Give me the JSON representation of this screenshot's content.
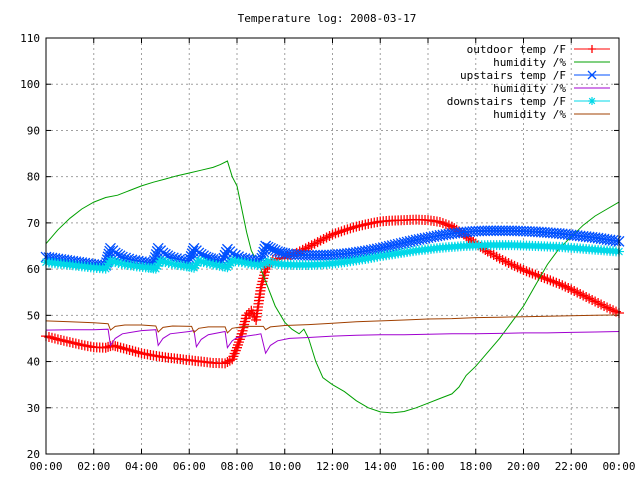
{
  "chart_data": {
    "type": "line",
    "title": "Temperature log: 2008-03-17",
    "xlabel": "",
    "ylabel": "",
    "xlim": [
      0,
      24
    ],
    "ylim": [
      20,
      110
    ],
    "x_ticks": [
      "00:00",
      "02:00",
      "04:00",
      "06:00",
      "08:00",
      "10:00",
      "12:00",
      "14:00",
      "16:00",
      "18:00",
      "20:00",
      "22:00",
      "00:00"
    ],
    "y_ticks": [
      "20",
      "30",
      "40",
      "50",
      "60",
      "70",
      "80",
      "90",
      "100",
      "110"
    ],
    "grid": true,
    "legend_position": "top-right",
    "x_units": "hours",
    "series": [
      {
        "name": "outdoor temp /F",
        "color": "#ff0000",
        "marker": "plus",
        "points": [
          [
            0,
            45.5
          ],
          [
            0.5,
            44.8
          ],
          [
            1,
            44.2
          ],
          [
            1.5,
            43.6
          ],
          [
            2,
            43.1
          ],
          [
            2.5,
            43.0
          ],
          [
            2.8,
            43.5
          ],
          [
            3,
            43.2
          ],
          [
            3.5,
            42.5
          ],
          [
            4,
            41.8
          ],
          [
            4.5,
            41.3
          ],
          [
            5,
            40.9
          ],
          [
            5.5,
            40.6
          ],
          [
            6,
            40.3
          ],
          [
            6.5,
            40.0
          ],
          [
            7,
            39.7
          ],
          [
            7.5,
            39.6
          ],
          [
            7.8,
            40.5
          ],
          [
            8,
            43
          ],
          [
            8.2,
            46
          ],
          [
            8.4,
            50
          ],
          [
            8.6,
            51
          ],
          [
            8.8,
            49
          ],
          [
            9,
            56
          ],
          [
            9.2,
            60
          ],
          [
            9.5,
            62
          ],
          [
            10,
            62.5
          ],
          [
            10.5,
            63.5
          ],
          [
            11,
            64.8
          ],
          [
            11.5,
            66.2
          ],
          [
            12,
            67.5
          ],
          [
            12.5,
            68.4
          ],
          [
            13,
            69.2
          ],
          [
            13.5,
            69.8
          ],
          [
            14,
            70.3
          ],
          [
            14.5,
            70.5
          ],
          [
            15,
            70.6
          ],
          [
            15.5,
            70.7
          ],
          [
            16,
            70.6
          ],
          [
            16.5,
            70.2
          ],
          [
            17,
            69.2
          ],
          [
            17.5,
            67.5
          ],
          [
            18,
            65.5
          ],
          [
            18.5,
            63.8
          ],
          [
            19,
            62.3
          ],
          [
            19.5,
            61.0
          ],
          [
            20,
            59.8
          ],
          [
            20.5,
            58.8
          ],
          [
            21,
            57.8
          ],
          [
            21.5,
            56.8
          ],
          [
            22,
            55.6
          ],
          [
            22.5,
            54.3
          ],
          [
            23,
            53.0
          ],
          [
            23.5,
            51.7
          ],
          [
            24,
            50.5
          ]
        ]
      },
      {
        "name": "humidity /%",
        "color": "#00a000",
        "marker": "none",
        "points": [
          [
            0,
            65.5
          ],
          [
            0.5,
            68.5
          ],
          [
            1,
            71
          ],
          [
            1.5,
            73
          ],
          [
            2,
            74.5
          ],
          [
            2.5,
            75.5
          ],
          [
            3,
            76
          ],
          [
            3.5,
            77
          ],
          [
            4,
            78
          ],
          [
            4.5,
            78.8
          ],
          [
            5,
            79.5
          ],
          [
            5.5,
            80.2
          ],
          [
            6,
            80.8
          ],
          [
            6.5,
            81.4
          ],
          [
            7,
            82
          ],
          [
            7.3,
            82.6
          ],
          [
            7.6,
            83.4
          ],
          [
            7.8,
            80
          ],
          [
            8,
            78
          ],
          [
            8.2,
            73
          ],
          [
            8.4,
            68
          ],
          [
            8.6,
            64
          ],
          [
            8.8,
            62
          ],
          [
            9,
            60
          ],
          [
            9.3,
            56
          ],
          [
            9.6,
            52
          ],
          [
            10,
            48.5
          ],
          [
            10.3,
            47
          ],
          [
            10.6,
            46
          ],
          [
            10.8,
            47
          ],
          [
            11,
            45
          ],
          [
            11.3,
            40
          ],
          [
            11.6,
            36.5
          ],
          [
            12,
            35
          ],
          [
            12.5,
            33.5
          ],
          [
            13,
            31.5
          ],
          [
            13.5,
            30
          ],
          [
            14,
            29.1
          ],
          [
            14.5,
            28.9
          ],
          [
            15,
            29.2
          ],
          [
            15.5,
            30
          ],
          [
            16,
            31
          ],
          [
            16.5,
            32
          ],
          [
            17,
            33
          ],
          [
            17.3,
            34.5
          ],
          [
            17.6,
            37
          ],
          [
            18,
            39
          ],
          [
            18.5,
            42
          ],
          [
            19,
            45
          ],
          [
            19.5,
            48.5
          ],
          [
            20,
            52
          ],
          [
            20.5,
            56.5
          ],
          [
            21,
            61
          ],
          [
            21.5,
            64.5
          ],
          [
            22,
            67
          ],
          [
            22.5,
            69.5
          ],
          [
            23,
            71.5
          ],
          [
            23.5,
            73
          ],
          [
            24,
            74.5
          ]
        ]
      },
      {
        "name": "upstairs temp /F",
        "color": "#0050ff",
        "marker": "x",
        "points": [
          [
            0,
            62.6
          ],
          [
            0.5,
            62.2
          ],
          [
            1,
            61.8
          ],
          [
            1.5,
            61.4
          ],
          [
            2,
            61.0
          ],
          [
            2.5,
            60.8
          ],
          [
            2.7,
            64.5
          ],
          [
            2.9,
            63.5
          ],
          [
            3.2,
            62.6
          ],
          [
            3.6,
            62.0
          ],
          [
            4,
            61.6
          ],
          [
            4.5,
            61.2
          ],
          [
            4.7,
            64.5
          ],
          [
            4.9,
            63.5
          ],
          [
            5.2,
            62.6
          ],
          [
            5.6,
            62.1
          ],
          [
            6,
            61.6
          ],
          [
            6.2,
            64.5
          ],
          [
            6.4,
            63.5
          ],
          [
            6.7,
            62.6
          ],
          [
            7,
            62.1
          ],
          [
            7.4,
            61.7
          ],
          [
            7.6,
            64.3
          ],
          [
            7.8,
            63.3
          ],
          [
            8.2,
            62.4
          ],
          [
            8.6,
            62
          ],
          [
            9,
            61.7
          ],
          [
            9.2,
            65
          ],
          [
            9.4,
            64.5
          ],
          [
            9.7,
            63.8
          ],
          [
            10,
            63.4
          ],
          [
            10.5,
            63.1
          ],
          [
            11,
            63.0
          ],
          [
            11.5,
            63.0
          ],
          [
            12,
            63.1
          ],
          [
            12.5,
            63.3
          ],
          [
            13,
            63.6
          ],
          [
            13.5,
            64.0
          ],
          [
            14,
            64.5
          ],
          [
            14.5,
            65.1
          ],
          [
            15,
            65.7
          ],
          [
            15.5,
            66.3
          ],
          [
            16,
            66.8
          ],
          [
            16.5,
            67.3
          ],
          [
            17,
            67.7
          ],
          [
            17.5,
            68.0
          ],
          [
            18,
            68.2
          ],
          [
            18.5,
            68.3
          ],
          [
            19,
            68.3
          ],
          [
            19.5,
            68.3
          ],
          [
            20,
            68.2
          ],
          [
            20.5,
            68.1
          ],
          [
            21,
            67.9
          ],
          [
            21.5,
            67.7
          ],
          [
            22,
            67.4
          ],
          [
            22.5,
            67.1
          ],
          [
            23,
            66.8
          ],
          [
            23.5,
            66.4
          ],
          [
            24,
            66.0
          ]
        ]
      },
      {
        "name": "humidity /%",
        "color": "#a000d0",
        "marker": "none",
        "points": [
          [
            0,
            46.8
          ],
          [
            1,
            46.9
          ],
          [
            2,
            46.9
          ],
          [
            2.6,
            47
          ],
          [
            2.7,
            43.5
          ],
          [
            2.9,
            45
          ],
          [
            3.2,
            46
          ],
          [
            4,
            46.7
          ],
          [
            4.6,
            46.9
          ],
          [
            4.7,
            43.5
          ],
          [
            4.9,
            45
          ],
          [
            5.2,
            46
          ],
          [
            6,
            46.5
          ],
          [
            6.2,
            46.7
          ],
          [
            6.3,
            43.2
          ],
          [
            6.5,
            44.8
          ],
          [
            6.8,
            45.8
          ],
          [
            7.5,
            46.5
          ],
          [
            7.6,
            43
          ],
          [
            7.8,
            44.5
          ],
          [
            8,
            45.2
          ],
          [
            8.8,
            45.8
          ],
          [
            9,
            46
          ],
          [
            9.2,
            41.8
          ],
          [
            9.4,
            43.5
          ],
          [
            9.7,
            44.5
          ],
          [
            10.2,
            45
          ],
          [
            11,
            45.2
          ],
          [
            12,
            45.5
          ],
          [
            13,
            45.7
          ],
          [
            14,
            45.8
          ],
          [
            15,
            45.8
          ],
          [
            16,
            45.9
          ],
          [
            17,
            46
          ],
          [
            18,
            46
          ],
          [
            19,
            46.1
          ],
          [
            20,
            46.2
          ],
          [
            21,
            46.2
          ],
          [
            22,
            46.3
          ],
          [
            23,
            46.4
          ],
          [
            24,
            46.5
          ]
        ]
      },
      {
        "name": "downstairs temp /F",
        "color": "#00d8e8",
        "marker": "star",
        "points": [
          [
            0,
            61.5
          ],
          [
            0.5,
            61.2
          ],
          [
            1,
            60.9
          ],
          [
            1.5,
            60.6
          ],
          [
            2,
            60.3
          ],
          [
            2.5,
            60.1
          ],
          [
            2.7,
            61.8
          ],
          [
            2.9,
            61.5
          ],
          [
            3.3,
            61.0
          ],
          [
            3.8,
            60.6
          ],
          [
            4.3,
            60.3
          ],
          [
            4.6,
            60.1
          ],
          [
            4.8,
            61.8
          ],
          [
            5,
            61.5
          ],
          [
            5.4,
            61
          ],
          [
            5.9,
            60.6
          ],
          [
            6.2,
            60.3
          ],
          [
            6.4,
            61.8
          ],
          [
            6.6,
            61.5
          ],
          [
            7,
            61
          ],
          [
            7.4,
            60.6
          ],
          [
            7.6,
            60.4
          ],
          [
            7.8,
            61.8
          ],
          [
            8.2,
            61.5
          ],
          [
            8.6,
            61.1
          ],
          [
            9,
            60.8
          ],
          [
            9.3,
            61.6
          ],
          [
            9.6,
            61.2
          ],
          [
            10,
            61.0
          ],
          [
            10.5,
            60.9
          ],
          [
            11,
            60.9
          ],
          [
            11.5,
            61.0
          ],
          [
            12,
            61.2
          ],
          [
            12.5,
            61.5
          ],
          [
            13,
            61.9
          ],
          [
            13.5,
            62.3
          ],
          [
            14,
            62.8
          ],
          [
            14.5,
            63.2
          ],
          [
            15,
            63.6
          ],
          [
            15.5,
            64.0
          ],
          [
            16,
            64.3
          ],
          [
            16.5,
            64.6
          ],
          [
            17,
            64.8
          ],
          [
            17.5,
            65.0
          ],
          [
            18,
            65.1
          ],
          [
            18.5,
            65.2
          ],
          [
            19,
            65.2
          ],
          [
            19.5,
            65.2
          ],
          [
            20,
            65.1
          ],
          [
            20.5,
            65.0
          ],
          [
            21,
            64.9
          ],
          [
            21.5,
            64.8
          ],
          [
            22,
            64.6
          ],
          [
            22.5,
            64.4
          ],
          [
            23,
            64.2
          ],
          [
            23.5,
            64.0
          ],
          [
            24,
            63.8
          ]
        ]
      },
      {
        "name": "humidity /%",
        "color": "#a04000",
        "marker": "none",
        "points": [
          [
            0,
            48.8
          ],
          [
            1,
            48.6
          ],
          [
            2,
            48.4
          ],
          [
            2.6,
            48.2
          ],
          [
            2.7,
            46.8
          ],
          [
            2.9,
            47.6
          ],
          [
            3.3,
            47.9
          ],
          [
            4,
            47.9
          ],
          [
            4.6,
            47.7
          ],
          [
            4.7,
            46.4
          ],
          [
            4.9,
            47.4
          ],
          [
            5.3,
            47.7
          ],
          [
            6.1,
            47.6
          ],
          [
            6.2,
            46.3
          ],
          [
            6.4,
            47.2
          ],
          [
            6.8,
            47.5
          ],
          [
            7.5,
            47.5
          ],
          [
            7.6,
            46.2
          ],
          [
            7.8,
            47.2
          ],
          [
            8.3,
            47.6
          ],
          [
            9.1,
            47.6
          ],
          [
            9.2,
            46.9
          ],
          [
            9.4,
            47.5
          ],
          [
            10,
            47.8
          ],
          [
            11,
            48.0
          ],
          [
            12,
            48.3
          ],
          [
            13,
            48.6
          ],
          [
            14,
            48.8
          ],
          [
            15,
            49.0
          ],
          [
            16,
            49.2
          ],
          [
            17,
            49.3
          ],
          [
            18,
            49.5
          ],
          [
            19,
            49.6
          ],
          [
            20,
            49.7
          ],
          [
            21,
            49.8
          ],
          [
            22,
            49.9
          ],
          [
            23,
            50.0
          ],
          [
            24,
            50.1
          ]
        ]
      }
    ]
  }
}
